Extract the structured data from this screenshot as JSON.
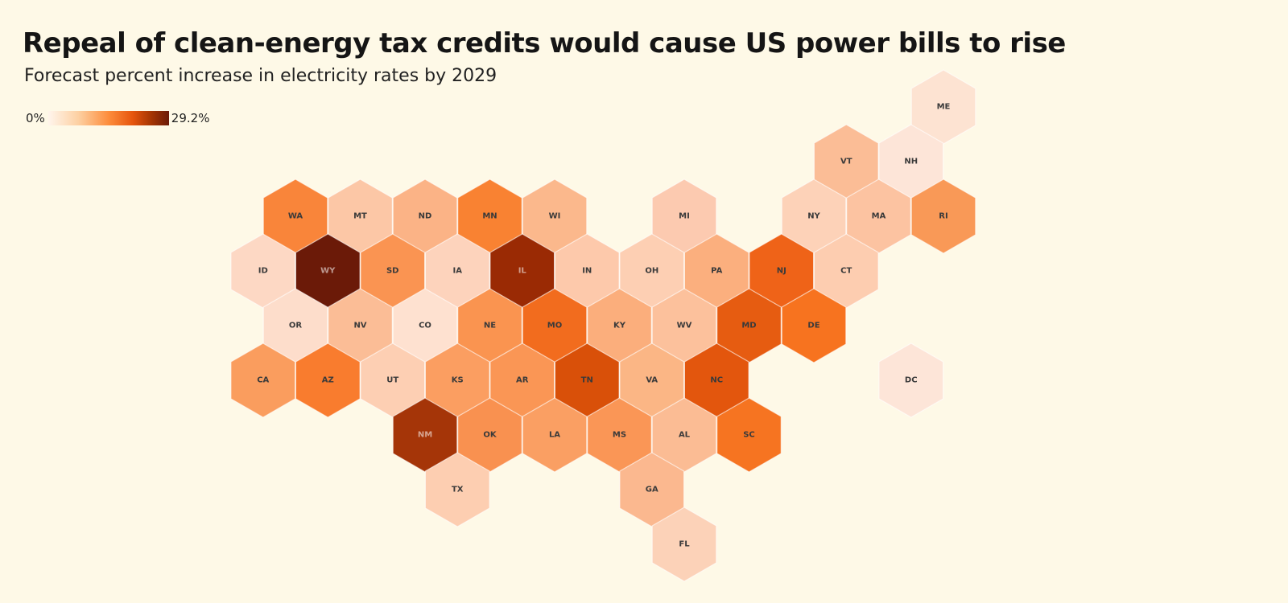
{
  "header": {
    "title": "Repeal of clean-energy tax credits would cause US power bills to rise",
    "subtitle": "Forecast percent increase in electricity rates by 2029"
  },
  "legend": {
    "min_label": "0%",
    "max_label": "29.2%",
    "min_value": 0,
    "max_value": 29.2
  },
  "map_data": {
    "type": "hex-tile-choropleth",
    "states": [
      {
        "abbr": "ME",
        "row": 0,
        "col": 10,
        "color": "#fde3d2"
      },
      {
        "abbr": "VT",
        "row": 1,
        "col": 8,
        "color": "#fbbd96"
      },
      {
        "abbr": "NH",
        "row": 1,
        "col": 9,
        "color": "#fde5d8"
      },
      {
        "abbr": "WA",
        "row": 2,
        "col": 0,
        "color": "#f9853a"
      },
      {
        "abbr": "MT",
        "row": 2,
        "col": 1,
        "color": "#fcc7a6"
      },
      {
        "abbr": "ND",
        "row": 2,
        "col": 2,
        "color": "#fbb386"
      },
      {
        "abbr": "MN",
        "row": 2,
        "col": 3,
        "color": "#f98232"
      },
      {
        "abbr": "WI",
        "row": 2,
        "col": 4,
        "color": "#fbb88c"
      },
      {
        "abbr": "MI",
        "row": 2,
        "col": 6,
        "color": "#fccab0"
      },
      {
        "abbr": "NY",
        "row": 2,
        "col": 8,
        "color": "#fdd2b8"
      },
      {
        "abbr": "MA",
        "row": 2,
        "col": 9,
        "color": "#fcc3a1"
      },
      {
        "abbr": "RI",
        "row": 2,
        "col": 10,
        "color": "#f99957"
      },
      {
        "abbr": "ID",
        "row": 3,
        "col": 0,
        "color": "#fdd8c4"
      },
      {
        "abbr": "WY",
        "row": 3,
        "col": 1,
        "color": "#6b1a08"
      },
      {
        "abbr": "SD",
        "row": 3,
        "col": 2,
        "color": "#fa9452"
      },
      {
        "abbr": "IA",
        "row": 3,
        "col": 3,
        "color": "#fdd3bc"
      },
      {
        "abbr": "IL",
        "row": 3,
        "col": 4,
        "color": "#9a2a04"
      },
      {
        "abbr": "IN",
        "row": 3,
        "col": 5,
        "color": "#fdc9ab"
      },
      {
        "abbr": "OH",
        "row": 3,
        "col": 6,
        "color": "#fdcfb3"
      },
      {
        "abbr": "PA",
        "row": 3,
        "col": 7,
        "color": "#fbaf7e"
      },
      {
        "abbr": "NJ",
        "row": 3,
        "col": 8,
        "color": "#ef6318"
      },
      {
        "abbr": "CT",
        "row": 3,
        "col": 9,
        "color": "#fdcdb0"
      },
      {
        "abbr": "OR",
        "row": 4,
        "col": 0,
        "color": "#fdddcb"
      },
      {
        "abbr": "NV",
        "row": 4,
        "col": 1,
        "color": "#fbbd96"
      },
      {
        "abbr": "CO",
        "row": 4,
        "col": 2,
        "color": "#fee1d0"
      },
      {
        "abbr": "NE",
        "row": 4,
        "col": 3,
        "color": "#fa9450"
      },
      {
        "abbr": "MO",
        "row": 4,
        "col": 4,
        "color": "#f26c1e"
      },
      {
        "abbr": "KY",
        "row": 4,
        "col": 5,
        "color": "#fbae7c"
      },
      {
        "abbr": "WV",
        "row": 4,
        "col": 6,
        "color": "#fcc19c"
      },
      {
        "abbr": "MD",
        "row": 4,
        "col": 7,
        "color": "#e65c11"
      },
      {
        "abbr": "DE",
        "row": 4,
        "col": 8,
        "color": "#f7731f"
      },
      {
        "abbr": "CA",
        "row": 5,
        "col": 0,
        "color": "#fa9d5e"
      },
      {
        "abbr": "AZ",
        "row": 5,
        "col": 1,
        "color": "#f97c2e"
      },
      {
        "abbr": "UT",
        "row": 5,
        "col": 2,
        "color": "#fdcfb3"
      },
      {
        "abbr": "KS",
        "row": 5,
        "col": 3,
        "color": "#fb9e61"
      },
      {
        "abbr": "AR",
        "row": 5,
        "col": 4,
        "color": "#fa9655"
      },
      {
        "abbr": "TN",
        "row": 5,
        "col": 5,
        "color": "#d95009"
      },
      {
        "abbr": "VA",
        "row": 5,
        "col": 6,
        "color": "#fbb685"
      },
      {
        "abbr": "NC",
        "row": 5,
        "col": 7,
        "color": "#e3560d"
      },
      {
        "abbr": "DC",
        "row": 5,
        "col": 10,
        "color": "#fde5d8"
      },
      {
        "abbr": "NM",
        "row": 6,
        "col": 2,
        "color": "#a53508"
      },
      {
        "abbr": "OK",
        "row": 6,
        "col": 3,
        "color": "#f99150"
      },
      {
        "abbr": "LA",
        "row": 6,
        "col": 4,
        "color": "#fa9f63"
      },
      {
        "abbr": "MS",
        "row": 6,
        "col": 5,
        "color": "#fa9656"
      },
      {
        "abbr": "AL",
        "row": 6,
        "col": 6,
        "color": "#fbbc94"
      },
      {
        "abbr": "SC",
        "row": 6,
        "col": 7,
        "color": "#f67421"
      },
      {
        "abbr": "TX",
        "row": 7,
        "col": 3,
        "color": "#fdceb1"
      },
      {
        "abbr": "GA",
        "row": 7,
        "col": 6,
        "color": "#fbb88f"
      },
      {
        "abbr": "FL",
        "row": 8,
        "col": 6,
        "color": "#fcd2b8"
      }
    ]
  }
}
